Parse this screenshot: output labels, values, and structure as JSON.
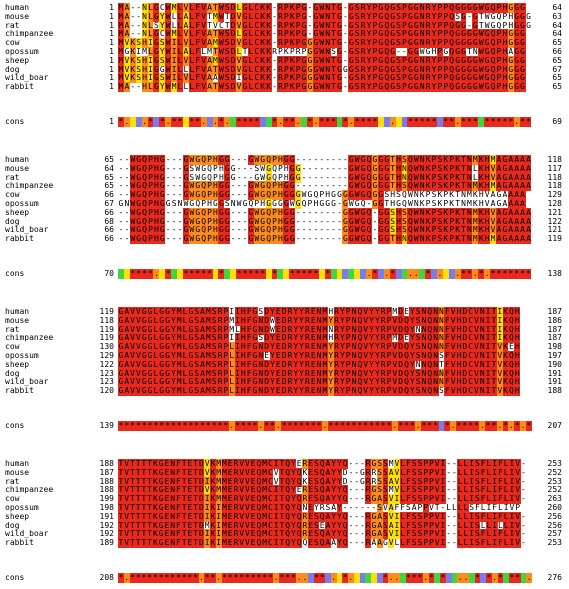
{
  "colors": {
    "identical": "#e8291c",
    "strong": "#ff8c1a",
    "weak": "#ffe000",
    "similar_green": "#3fd63f",
    "special_blue": "#7b7bf0",
    "none": "#ffffff"
  },
  "blocks": [
    {
      "rows": [
        {
          "name": "human",
          "start": "1",
          "seq": "MA--NLGCWMLVLFVATWSDLGLCKK-RPKPG-GWNTG-GSRYPGQGSPGGNRYPPQGGGGWGQPHGGG",
          "end": "64"
        },
        {
          "name": "mouse",
          "start": "1",
          "seq": "MA--NLGYWLLALFVTMWTDVGLCKK-RPKPG-GWNTG-GSRYPGQGSPGGNRYPPQSG-GTWGQPHGGG",
          "end": "63"
        },
        {
          "name": "rat",
          "start": "1",
          "seq": "MA--NLSYWLLALFVTVCTDVGLCKK-RPKPG-GWNTG-GSRYPGQGSPGGNRYPPQGG-GTWGQPHGGG",
          "end": "64"
        },
        {
          "name": "chimpanzee",
          "start": "1",
          "seq": "MA--NLGCWMLVLFVATWSDLGLCKK-RPKPG-GWNTG-GSRYPGQGSPGGNRYPPQGGGGWGQPHGGG",
          "end": "64"
        },
        {
          "name": "cow",
          "start": "1",
          "seq": "MVKSHIGSWILVLFVAMWSDVGLCKK-RPKPGGGWNTG-GSRYPGQGSPGGNRYPPQGGGGWGQPHGGG",
          "end": "65"
        },
        {
          "name": "opossum",
          "start": "1",
          "seq": "MGKIMLGYWILALFLMTWSDLTLCKKRPKPRPGGWNSG-GSRYPGQG--GGWGHPGQGGTNWGQPHAGG",
          "end": "66"
        },
        {
          "name": "sheep",
          "start": "1",
          "seq": "MVKSHIGSWILVLFVAMWSDVGLCKK-RPKPGGGWNTG-GSRYPGQGSPGGNRYPPQGGGGWGQPHGGG",
          "end": "65"
        },
        {
          "name": "dog",
          "start": "1",
          "seq": "MVKSHIGGWILLLFVATWSDVGLCKK-RPKPGGGWNTGGGSRYPGQGSPGGNRYPPQGGGGWGQPHGGG",
          "end": "67"
        },
        {
          "name": "wild_boar",
          "start": "1",
          "seq": "MVKSHIGSWILVLFVAAWSDIGLCKK-RPKPGGGWNTG-GSRYPGQGSPGGNRYPPQGGGGWGQPHGGG",
          "end": "65"
        },
        {
          "name": "rabbit",
          "start": "1",
          "seq": "MA--HLGYWMLLLFVATWSDVGLCKK-RPKPGGGWNTG-GSRYPGQGSPGGNRYPPQGGGGWGQPHGGG",
          "end": "65"
        }
      ],
      "cons": {
        "name": "cons",
        "start": "1",
        "seq": "*.  .* *.** **. .*. ****  *.**. *.*** *.****  .  ***** **.*** *****.**",
        "end": "69"
      }
    },
    {
      "rows": [
        {
          "name": "human",
          "start": "65",
          "seq": "--WGQPHG---GWGQPHGG---GWGQPHGG---------GWGQGGGTHSQWNKPSKPKTNMKHMAGAAAA",
          "end": "118"
        },
        {
          "name": "mouse",
          "start": "64",
          "seq": "--WGQPHG---GSWGQPHGG---SWGQPHGG--------GWGQGGGTHNQWNKPSKPKTNLKHVAGAAAA",
          "end": "117"
        },
        {
          "name": "rat",
          "start": "65",
          "seq": "--WGQPHG---GSWGQPHGG---GWGQPHGG--------GWGQGGGTHNQWNKPSKPKTNLKHVAGAAAA",
          "end": "118"
        },
        {
          "name": "chimpanzee",
          "start": "65",
          "seq": "--WGQPHG---GWGQPHGG---GWGQPHGG---------GWGQGGGTHSQWNKPSKPKTNMKHMAGAAAA",
          "end": "118"
        },
        {
          "name": "cow",
          "start": "66",
          "seq": "--WGQPHG---GWGQPHGG---GWGQPHGGGWGQPHGGGGWGQGGSHSQWNKPSKPKTNMKHVAGAAAA",
          "end": "129"
        },
        {
          "name": "opossum",
          "start": "67",
          "seq": "GNWGQPHGGSNWGQPHGGSNWGQPHGGGGWGQPHGGG-GWGQ-GGTHGQWNKPSKPKTNMKHVAGAAAA",
          "end": "128"
        },
        {
          "name": "sheep",
          "start": "66",
          "seq": "--WGQPHG---GWGQPHGG---GWGQPHGG--------GGWGQ-GGSHSQWNKPSKPKTNMKHVAGAAAA",
          "end": "121"
        },
        {
          "name": "dog",
          "start": "68",
          "seq": "--WGQPHG---GWGQPHGG---GWGQPHGG--------GGWGQ-GGSHSQWNKPSKPKTNMKHVAGAAAA",
          "end": "122"
        },
        {
          "name": "wild_boar",
          "start": "66",
          "seq": "--WGQPHG---GWGQPHGG---GWGQPHGG--------GGWGQ-GGSHSQWNKPSKPKTNMKHVAGAAAA",
          "end": "121"
        },
        {
          "name": "rabbit",
          "start": "66",
          "seq": "--WGQPHG---GWGQPHGG---GWGQPHGG--------GGWGQ-GGTHNQWNKPSKPKTNMKHMAGAAAA",
          "end": "119"
        }
      ],
      "cons": {
        "name": "cons",
        "start": "70",
        "seq": "  ****. *  ***** *  ***** *  ***** *      .* .*  .. * .  .**.*.*******",
        "end": "138"
      }
    },
    {
      "rows": [
        {
          "name": "human",
          "start": "119",
          "seq": "GAVVGGLGGYMLGSAMSRPIIHFGSDYEDRYYRENMHRYPNQVYYRPMDEYSNQNNFVHDCVNITIKQH",
          "end": "187"
        },
        {
          "name": "mouse",
          "start": "118",
          "seq": "GAVVGGLGGYMLGSAMSRPMIHFGNDWEDRYYRENMYRYPNQVYYRPVDQYSNQNNFVHDCVNITIKQH",
          "end": "186"
        },
        {
          "name": "rat",
          "start": "119",
          "seq": "GAVVGGLGGYMLGSAMSRPMLHFGNDWEDRYYRENMNRYPNQVYYRPVDQYNNQNNFVHDCVNITIKQH",
          "end": "187"
        },
        {
          "name": "chimpanzee",
          "start": "119",
          "seq": "GAVVGGLGGYMLGSAMSRPIIHFGSDYEDRYYRENMHRYPNQVYYRPMDEYSNQNNFVHDCVNITIKQH",
          "end": "187"
        },
        {
          "name": "cow",
          "start": "130",
          "seq": "GAVVGGLGGYMLGSAMSRPLIHFGNDYEDRYYRENMYRYPNQVYYRPVDQYSNQNNFVHDCVNITVKEH",
          "end": "198"
        },
        {
          "name": "opossum",
          "start": "129",
          "seq": "GAVVGGLGGYMLGSAMSRPLIHFGNEYEDRYYRENMYRYPNQVYYRPVDQYSNQNSFVHDCVNITVKQH",
          "end": "197"
        },
        {
          "name": "sheep",
          "start": "122",
          "seq": "GAVVGGLGGYMLGSAMSRPLIHFGNDYEDRYYRENMYRYPNQVYYRPVDQYNNQNTFVHDCVNITVKQH",
          "end": "190"
        },
        {
          "name": "dog",
          "start": "123",
          "seq": "GAVVGGLGGYMLGSAMSRPLIHFGNDYEDRYYRENMYRYPNQVYYRPVDQYSNQNNFVHDCVNITVKQH",
          "end": "191"
        },
        {
          "name": "wild_boar",
          "start": "123",
          "seq": "GAVVGGLGGYMLGSAMSRPLIHFGNDYEDRYYRENMYRYPNQVYYRPVDQYSNQNNFVHDCVNITVKQH",
          "end": "191"
        },
        {
          "name": "rabbit",
          "start": "120",
          "seq": "GAVVGGLGGYMLGSAMSRPLIHFGNDYEDRYYRENMYRYPNQVYYRPVDQYSNQNSFVHDCVNITVKQH",
          "end": "188"
        }
      ],
      "cons": {
        "name": "cons",
        "start": "139",
        "seq": "*******************.****.**.*******.***********.***.*** *.****.**.*.*.*",
        "end": "207"
      }
    },
    {
      "rows": [
        {
          "name": "human",
          "start": "188",
          "seq": "TVTTTTKGENFTETDVKMMERVVEQMCITQYERESQAYYQ---RGSSMVLFSSPPVI--LLISFLIFLIV-",
          "end": "253"
        },
        {
          "name": "mouse",
          "start": "187",
          "seq": "TVTTTTKGENFTETDVKMMERVVEQMCVTQYQKESQAYYD--GRRSSAVLFSSPPVI--LLISFLIFLIV-",
          "end": "252"
        },
        {
          "name": "rat",
          "start": "188",
          "seq": "TVTTTTKGENFTETDIKMMERVVEQMCVTQYQKESQAYYD--GRRSSAVLFSSPPVI--LLISFLIFLIV-",
          "end": "253"
        },
        {
          "name": "chimpanzee",
          "start": "188",
          "seq": "TVTTTTKGENFTETDVKMMERVVEQMCITQYERESQAYYQ---RGSSMVLFSSPPVI--LLISFLIFLIV-",
          "end": "252"
        },
        {
          "name": "cow",
          "start": "199",
          "seq": "TVTTTTKGENFTETDIKMMERVVEQMCITQYQRESQAYYQ---RGASVILFSSPPVI--LLISFLIFLIV-",
          "end": "263"
        },
        {
          "name": "opossum",
          "start": "198",
          "seq": "TVTTTTKGENFTETDIKIMERVVEQMCITQYQNEYRSAY------SVAFFSAPPVT-LLLLSFLIFLIVP",
          "end": "260"
        },
        {
          "name": "sheep",
          "start": "191",
          "seq": "TVTTTTKGENFTETDIKIMERVVEQMCITQYQRESQAYYQ---RGASVILFSSPPVI--LLISFLIFLIV-",
          "end": "256"
        },
        {
          "name": "dog",
          "start": "192",
          "seq": "TVTTTTKGENFTETDMKIMERVVEQMCITQYQRESEAYYQ---RGASAILFSSPPVI--LLISLLILLIV-",
          "end": "256"
        },
        {
          "name": "wild_boar",
          "start": "192",
          "seq": "TVTTTTKGENFTETDIKIMERVVEQMCITQYQRESQAYYQ---RGASVILFSSPPVI--LLISFLIFLIV-",
          "end": "257"
        },
        {
          "name": "rabbit",
          "start": "189",
          "seq": "TVTTTTKGENFTETDIKIMERVVEQMCITQYQQESQAAYQ---RAAGVLLFSSPPVI--LLISFLIFLIV-",
          "end": "253"
        }
      ],
      "cons": {
        "name": "cons",
        "start": "208",
        "seq": "*.************.**.*********.***.. ** . *.     *.. ***.* *  .. * *.* ** .",
        "end": "276"
      }
    }
  ]
}
